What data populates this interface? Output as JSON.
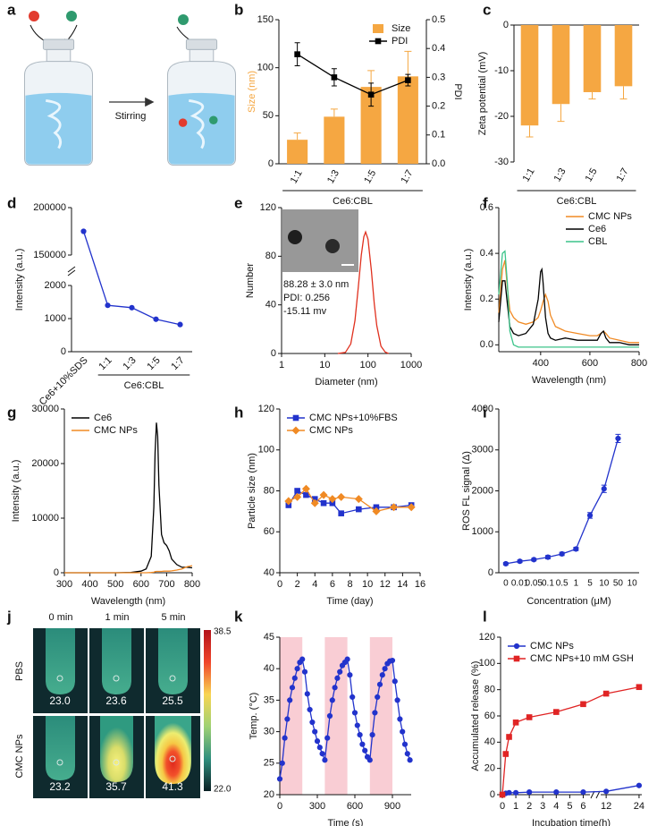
{
  "panel_a": {
    "label": "a",
    "text": "Stirring"
  },
  "panel_j": {
    "label": "j",
    "columns": [
      "0 min",
      "1 min",
      "5 min"
    ],
    "rows": [
      {
        "name": "PBS",
        "temps": [
          "23.0",
          "23.6",
          "25.5"
        ]
      },
      {
        "name": "CMC NPs",
        "temps": [
          "23.2",
          "35.7",
          "41.3"
        ]
      }
    ],
    "scale_max": "38.5",
    "scale_min": "22.0"
  },
  "chart_data": [
    {
      "label": "b",
      "type": "bar",
      "categories": [
        "1:1",
        "1:3",
        "1:5",
        "1:7"
      ],
      "rotate_x_labels": true,
      "group_label": "Ce6:CBL",
      "ylabel": "Size (nm)",
      "ylabel_color": "#f5a742",
      "ylim": [
        0,
        150
      ],
      "yticks": [
        0,
        50,
        100,
        150
      ],
      "y2label": "PDI",
      "y2lim": [
        0,
        0.5
      ],
      "y2ticks": [
        {
          "value": 0,
          "label": "0.0"
        },
        0.1,
        0.2,
        0.3,
        0.4,
        0.5
      ],
      "legend": "upper right",
      "series": [
        {
          "name": "Size",
          "color": "#f5a742",
          "values": [
            25,
            49,
            80,
            91
          ],
          "errors": [
            7,
            8,
            17,
            26
          ]
        },
        {
          "name": "PDI",
          "color": "#000000",
          "axis": "y2",
          "mark": "line",
          "marker": "square",
          "values": [
            0.38,
            0.3,
            0.24,
            0.29
          ],
          "errors": [
            0.04,
            0.03,
            0.04,
            0.02
          ]
        }
      ]
    },
    {
      "label": "c",
      "type": "bar",
      "categories": [
        "1:1",
        "1:3",
        "1:5",
        "1:7"
      ],
      "rotate_x_labels": true,
      "group_label": "Ce6:CBL",
      "ylabel": "Zeta potential (mV)",
      "ylim": [
        -30,
        0
      ],
      "yticks": [
        -30,
        -20,
        -10,
        0
      ],
      "series": [
        {
          "color": "#f5a742",
          "values": [
            -22,
            -17.3,
            -14.7,
            -13.4
          ],
          "errors": [
            2.5,
            3.8,
            1.5,
            2.8
          ]
        }
      ]
    },
    {
      "label": "d",
      "type": "line",
      "categories": [
        "Ce6+10%SDS",
        "1:1",
        "1:3",
        "1:5",
        "1:7"
      ],
      "rotate_x_labels": true,
      "group_label": "Ce6:CBL",
      "ylabel": "Intensity (a.u.)",
      "ylim_segments": [
        [
          0,
          2000
        ],
        [
          150000,
          200000
        ]
      ],
      "yticks": [
        0,
        1000,
        2000,
        150000,
        200000
      ],
      "series": [
        {
          "color": "#2233cc",
          "marker": "circle",
          "values": [
            175000,
            1400,
            1330,
            980,
            820
          ]
        }
      ]
    },
    {
      "label": "e",
      "type": "line",
      "xscale": "log",
      "xlim": [
        1,
        1000
      ],
      "xticks": [
        1,
        10,
        100,
        1000
      ],
      "ylim": [
        0,
        120
      ],
      "yticks": [
        0,
        40,
        80,
        120
      ],
      "xlabel": "Diameter (nm)",
      "ylabel": "Number",
      "annotations": [
        "88.28 ± 3.0  nm",
        "PDI: 0.256",
        "-15.11 mv"
      ],
      "x": [
        20,
        30,
        40,
        50,
        60,
        70,
        80,
        88,
        100,
        120,
        140,
        160,
        200,
        250,
        300
      ],
      "series": [
        {
          "color": "#e0301e",
          "values": [
            0,
            0.9,
            7.9,
            27,
            55,
            81,
            96,
            100,
            94,
            68,
            41,
            23,
            6,
            1.2,
            0
          ]
        }
      ]
    },
    {
      "label": "f",
      "type": "line",
      "xlim": [
        230,
        800
      ],
      "xticks": [
        400,
        600,
        800
      ],
      "ylim": [
        -0.03,
        0.6
      ],
      "yticks": [
        {
          "value": 0,
          "label": "0.0"
        },
        0.2,
        0.4,
        0.6
      ],
      "xlabel": "Wavelength (nm)",
      "ylabel": "Intensity (a.u.)",
      "legend": "upper right",
      "x": [
        230,
        245,
        255,
        265,
        275,
        290,
        310,
        340,
        370,
        390,
        400,
        405,
        410,
        420,
        430,
        440,
        460,
        500,
        550,
        600,
        630,
        645,
        655,
        665,
        680,
        720,
        760,
        800
      ],
      "series": [
        {
          "name": "CMC NPs",
          "color": "#f08a24",
          "values": [
            0.14,
            0.33,
            0.37,
            0.25,
            0.15,
            0.12,
            0.1,
            0.09,
            0.1,
            0.12,
            0.15,
            0.17,
            0.19,
            0.22,
            0.19,
            0.13,
            0.08,
            0.06,
            0.05,
            0.04,
            0.04,
            0.05,
            0.06,
            0.05,
            0.03,
            0.02,
            0.01,
            0.01
          ]
        },
        {
          "name": "Ce6",
          "color": "#000000",
          "values": [
            0.1,
            0.28,
            0.28,
            0.18,
            0.08,
            0.05,
            0.04,
            0.05,
            0.09,
            0.2,
            0.32,
            0.33,
            0.27,
            0.12,
            0.05,
            0.03,
            0.02,
            0.03,
            0.02,
            0.02,
            0.02,
            0.05,
            0.06,
            0.03,
            0.01,
            0.01,
            0,
            0
          ]
        },
        {
          "name": "CBL",
          "color": "#3cc48a",
          "values": [
            0.22,
            0.4,
            0.41,
            0.27,
            0.06,
            0,
            -0.01,
            -0.01,
            -0.01,
            -0.01,
            -0.01,
            -0.01,
            -0.01,
            -0.01,
            -0.01,
            -0.01,
            -0.01,
            -0.01,
            -0.01,
            -0.01,
            -0.01,
            -0.01,
            -0.01,
            -0.01,
            -0.01,
            -0.01,
            -0.01,
            -0.01
          ]
        }
      ]
    },
    {
      "label": "g",
      "type": "line",
      "xlim": [
        300,
        800
      ],
      "xticks": [
        300,
        400,
        500,
        600,
        700,
        800
      ],
      "ylim": [
        0,
        30000
      ],
      "yticks": [
        0,
        10000,
        20000,
        30000
      ],
      "xlabel": "Wavelength (nm)",
      "ylabel": "Intensity (a.u.)",
      "legend": "upper left",
      "x": [
        300,
        400,
        500,
        560,
        600,
        620,
        640,
        650,
        655,
        660,
        665,
        670,
        680,
        690,
        700,
        710,
        720,
        740,
        760,
        780,
        800
      ],
      "series": [
        {
          "name": "Ce6",
          "color": "#000000",
          "values": [
            0,
            0,
            0,
            50,
            300,
            700,
            3000,
            12000,
            22000,
            27500,
            25000,
            16000,
            7000,
            5500,
            5000,
            4000,
            2500,
            1500,
            1000,
            1000,
            900
          ]
        },
        {
          "name": "CMC NPs",
          "color": "#f08a24",
          "values": [
            0,
            0,
            0,
            0,
            0,
            0,
            50,
            100,
            200,
            250,
            250,
            250,
            250,
            300,
            300,
            300,
            350,
            500,
            700,
            1100,
            1300
          ]
        }
      ]
    },
    {
      "label": "h",
      "type": "line",
      "xlim": [
        0,
        16
      ],
      "xticks": [
        0,
        2,
        4,
        6,
        8,
        10,
        12,
        14,
        16
      ],
      "ylim": [
        40,
        120
      ],
      "yticks": [
        40,
        60,
        80,
        100,
        120
      ],
      "xlabel": "Time (day)",
      "ylabel": "Particle size (nm)",
      "legend": "upper left",
      "x": [
        1,
        2,
        3,
        4,
        5,
        6,
        7,
        9,
        11,
        13,
        15
      ],
      "series": [
        {
          "name": "CMC NPs+10%FBS",
          "color": "#2233cc",
          "marker": "square",
          "values": [
            73,
            80,
            78,
            76,
            74,
            74,
            69,
            71,
            72,
            72,
            73
          ]
        },
        {
          "name": "CMC NPs",
          "color": "#f08a24",
          "marker": "diamond",
          "values": [
            75,
            77,
            81,
            74,
            78,
            76,
            77,
            76,
            70,
            72,
            72
          ]
        }
      ]
    },
    {
      "label": "i",
      "type": "line",
      "categories": [
        "0",
        "0.01",
        "0.05",
        "0.1",
        "0.5",
        "1",
        "5",
        "10",
        "50",
        "10"
      ],
      "ylim": [
        0,
        4000
      ],
      "yticks": [
        0,
        1000,
        2000,
        3000,
        4000
      ],
      "xlabel": "Concentration (μM)",
      "ylabel": "ROS FL signal (Δ)",
      "series": [
        {
          "color": "#2233cc",
          "marker": "circle",
          "values": [
            220,
            280,
            320,
            380,
            460,
            580,
            1400,
            2050,
            3280,
            null
          ],
          "errors": [
            30,
            30,
            30,
            40,
            40,
            40,
            70,
            90,
            100,
            null
          ]
        }
      ]
    },
    {
      "label": "k",
      "type": "line",
      "xlim": [
        0,
        1050
      ],
      "xticks": [
        0,
        300,
        600,
        900
      ],
      "ylim": [
        20,
        45
      ],
      "yticks": [
        20,
        25,
        30,
        35,
        40,
        45
      ],
      "xlabel": "Time (s)",
      "ylabel": "Temp. (°C)",
      "shaded_x": [
        [
          0,
          180
        ],
        [
          360,
          540
        ],
        [
          720,
          900
        ]
      ],
      "shaded_color": "#f8c4cc",
      "x": [
        0,
        20,
        40,
        60,
        80,
        100,
        120,
        140,
        160,
        180,
        200,
        220,
        240,
        260,
        280,
        300,
        320,
        340,
        360,
        380,
        400,
        420,
        440,
        460,
        480,
        500,
        520,
        540,
        560,
        580,
        600,
        620,
        640,
        660,
        680,
        700,
        720,
        740,
        760,
        780,
        800,
        820,
        840,
        860,
        880,
        900,
        920,
        940,
        960,
        980,
        1000,
        1020,
        1040
      ],
      "series": [
        {
          "color": "#2233cc",
          "marker": "circle",
          "values": [
            22.5,
            25,
            29,
            32,
            35,
            37,
            38.5,
            40,
            41,
            41.5,
            39.5,
            36,
            33.5,
            31.5,
            30,
            28.5,
            27.5,
            26.5,
            25.5,
            29,
            32.5,
            35,
            37,
            38.5,
            39.5,
            40.5,
            41,
            41.5,
            39,
            35.5,
            33,
            31,
            29.5,
            28,
            27,
            26,
            25.5,
            29.5,
            33,
            35.5,
            37.5,
            39,
            40,
            40.8,
            41.2,
            41.3,
            38,
            35,
            32,
            30,
            28,
            26.5,
            25.5
          ]
        }
      ]
    },
    {
      "label": "l",
      "type": "line",
      "xlim_segments": [
        [
          0,
          6.5
        ],
        [
          10,
          25
        ]
      ],
      "xticks": [
        0,
        1,
        2,
        3,
        4,
        5,
        6,
        12,
        24
      ],
      "ylim": [
        0,
        120
      ],
      "yticks": [
        0,
        20,
        40,
        60,
        80,
        100,
        120
      ],
      "xlabel": "Incubation time(h)",
      "ylabel": "Accumulated release (%)",
      "legend": "upper left",
      "x": [
        0,
        0.25,
        0.5,
        1,
        2,
        4,
        6,
        12,
        24
      ],
      "series": [
        {
          "name": "CMC NPs",
          "color": "#2233cc",
          "marker": "circle",
          "values": [
            0,
            1,
            1.5,
            1.5,
            2,
            2,
            2,
            2.5,
            7
          ]
        },
        {
          "name": "CMC NPs+10 mM GSH",
          "color": "#e02424",
          "marker": "square",
          "values": [
            0,
            31,
            44,
            55,
            59,
            63,
            69,
            77,
            82
          ]
        }
      ]
    }
  ]
}
